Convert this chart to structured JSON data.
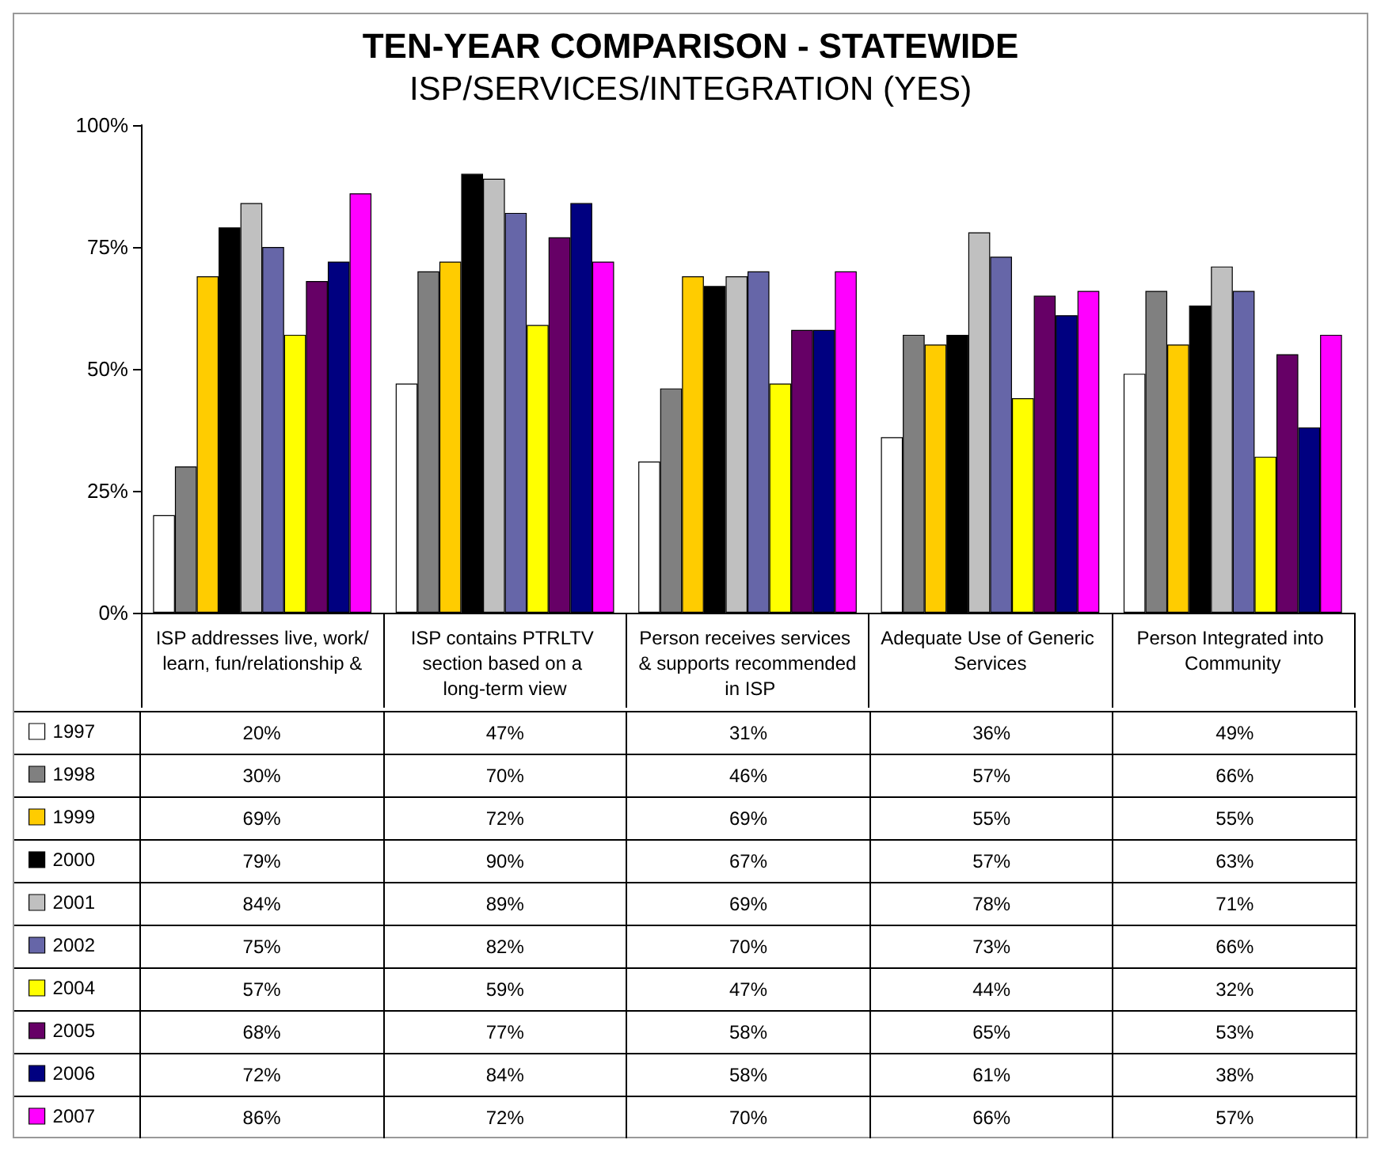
{
  "chart_data": {
    "type": "bar",
    "title": "TEN-YEAR COMPARISON - STATEWIDE",
    "subtitle": "ISP/SERVICES/INTEGRATION (YES)",
    "categories": [
      "ISP addresses live, work/learn, fun/relationship &",
      "ISP contains PTRLTV section based on a long-term view",
      "Person receives services & supports recommended in ISP",
      "Adequate Use of Generic Services",
      "Person Integrated into Community"
    ],
    "series": [
      {
        "name": "1997",
        "color": "#ffffff",
        "values": [
          20,
          47,
          31,
          36,
          49
        ],
        "value_labels": [
          "20%",
          "47%",
          "31%",
          "36%",
          "49%"
        ]
      },
      {
        "name": "1998",
        "color": "#808080",
        "values": [
          30,
          70,
          46,
          57,
          66
        ],
        "value_labels": [
          "30%",
          "70%",
          "46%",
          "57%",
          "66%"
        ]
      },
      {
        "name": "1999",
        "color": "#ffcc00",
        "values": [
          69,
          72,
          69,
          55,
          55
        ],
        "value_labels": [
          "69%",
          "72%",
          "69%",
          "55%",
          "55%"
        ]
      },
      {
        "name": "2000",
        "color": "#000000",
        "values": [
          79,
          90,
          67,
          57,
          63
        ],
        "value_labels": [
          "79%",
          "90%",
          "67%",
          "57%",
          "63%"
        ]
      },
      {
        "name": "2001",
        "color": "#c0c0c0",
        "values": [
          84,
          89,
          69,
          78,
          71
        ],
        "value_labels": [
          "84%",
          "89%",
          "69%",
          "78%",
          "71%"
        ]
      },
      {
        "name": "2002",
        "color": "#6666a8",
        "values": [
          75,
          82,
          70,
          73,
          66
        ],
        "value_labels": [
          "75%",
          "82%",
          "70%",
          "73%",
          "66%"
        ]
      },
      {
        "name": "2004",
        "color": "#ffff00",
        "values": [
          57,
          59,
          47,
          44,
          32
        ],
        "value_labels": [
          "57%",
          "59%",
          "47%",
          "44%",
          "32%"
        ]
      },
      {
        "name": "2005",
        "color": "#660066",
        "values": [
          68,
          77,
          58,
          65,
          53
        ],
        "value_labels": [
          "68%",
          "77%",
          "58%",
          "65%",
          "53%"
        ]
      },
      {
        "name": "2006",
        "color": "#000080",
        "values": [
          72,
          84,
          58,
          61,
          38
        ],
        "value_labels": [
          "72%",
          "84%",
          "58%",
          "61%",
          "38%"
        ]
      },
      {
        "name": "2007",
        "color": "#ff00ff",
        "values": [
          86,
          72,
          70,
          66,
          57
        ],
        "value_labels": [
          "86%",
          "72%",
          "70%",
          "66%",
          "57%"
        ]
      }
    ],
    "ylim": [
      0,
      100
    ],
    "yticks": [
      {
        "value": 0,
        "label": "0%"
      },
      {
        "value": 25,
        "label": "25%"
      },
      {
        "value": 50,
        "label": "50%"
      },
      {
        "value": 75,
        "label": "75%"
      },
      {
        "value": 100,
        "label": "100%"
      }
    ],
    "grid": false,
    "legend": "bottom left"
  }
}
